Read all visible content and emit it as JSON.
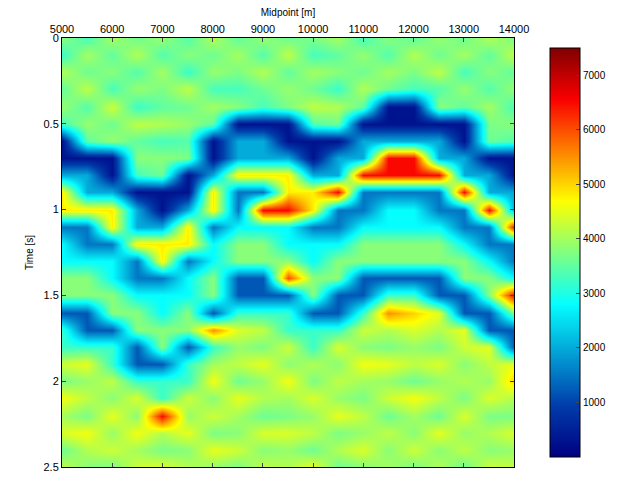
{
  "chart_data": {
    "type": "heatmap",
    "x_label": "Midpoint [m]",
    "y_label": "Time [s]",
    "x": [
      5000,
      5500,
      6000,
      6500,
      7000,
      7500,
      8000,
      8500,
      9000,
      9500,
      10000,
      10500,
      11000,
      11500,
      12000,
      12500,
      13000,
      13500,
      14000
    ],
    "y": [
      0,
      0.1,
      0.2,
      0.3,
      0.4,
      0.5,
      0.6,
      0.7,
      0.8,
      0.9,
      1.0,
      1.1,
      1.2,
      1.3,
      1.4,
      1.5,
      1.6,
      1.7,
      1.8,
      1.9,
      2.0,
      2.1,
      2.2,
      2.3,
      2.4,
      2.5
    ],
    "z": [
      [
        3800,
        3200,
        4100,
        3500,
        3900,
        3300,
        300,
        300,
        2000,
        4800,
        4800,
        1500,
        2800,
        2800,
        3800,
        3800,
        1200,
        3200,
        3200,
        4300,
        3700,
        4600,
        4000,
        4400,
        3600,
        4200
      ],
      [
        3300,
        4000,
        3600,
        4200,
        3400,
        3900,
        3500,
        300,
        2000,
        2000,
        4800,
        1500,
        1500,
        2800,
        3800,
        3800,
        1200,
        1200,
        3200,
        4500,
        3900,
        4200,
        3700,
        4600,
        4100,
        3800
      ],
      [
        4000,
        3500,
        3800,
        3300,
        4300,
        3600,
        3900,
        300,
        300,
        2000,
        4800,
        4800,
        1500,
        2800,
        2800,
        3800,
        3800,
        1200,
        3200,
        3200,
        4200,
        3800,
        4500,
        3900,
        4300,
        3700
      ],
      [
        3600,
        4100,
        3400,
        3900,
        3200,
        4200,
        3500,
        3800,
        3300,
        300,
        2000,
        2000,
        4800,
        1500,
        1500,
        2800,
        3800,
        3800,
        1200,
        1200,
        3200,
        4400,
        3800,
        4600,
        4000,
        4300
      ],
      [
        3900,
        3400,
        4000,
        3700,
        3500,
        4100,
        3300,
        3800,
        3600,
        300,
        300,
        2000,
        4800,
        4800,
        1500,
        2800,
        2800,
        3800,
        3800,
        1200,
        3200,
        3200,
        6500,
        4100,
        3700,
        4400
      ],
      [
        3400,
        3800,
        3200,
        4200,
        3600,
        3900,
        3400,
        3700,
        300,
        300,
        2000,
        4800,
        4800,
        1500,
        2800,
        2800,
        3800,
        3800,
        1200,
        3200,
        3200,
        4300,
        3900,
        4500,
        3800,
        4100
      ],
      [
        4100,
        3600,
        3900,
        3300,
        4000,
        3500,
        300,
        300,
        2000,
        4800,
        4800,
        1500,
        2800,
        2800,
        3800,
        3800,
        1200,
        5500,
        3200,
        4000,
        4600,
        3800,
        4300,
        3700,
        4500,
        3900
      ],
      [
        3500,
        4000,
        3700,
        3300,
        3800,
        300,
        2000,
        2000,
        4800,
        1500,
        1500,
        2800,
        3800,
        3800,
        1200,
        1200,
        3200,
        4400,
        3900,
        4200,
        3600,
        4500,
        4000,
        3800,
        4300,
        3700
      ],
      [
        3900,
        3400,
        4100,
        3600,
        3300,
        300,
        2000,
        2000,
        4800,
        1500,
        6500,
        2800,
        3800,
        3800,
        1200,
        1200,
        3200,
        4200,
        3700,
        4500,
        3900,
        4100,
        3600,
        4400,
        3800,
        4200
      ],
      [
        3600,
        4200,
        3500,
        3900,
        3700,
        300,
        300,
        2000,
        4800,
        4800,
        6500,
        2800,
        2800,
        3800,
        6000,
        1200,
        3200,
        3200,
        4300,
        3800,
        4600,
        4000,
        3700,
        4400,
        3900,
        4100
      ],
      [
        3700,
        3300,
        4000,
        3600,
        4200,
        3400,
        300,
        300,
        2000,
        4800,
        4800,
        1500,
        2800,
        2800,
        3800,
        3800,
        1200,
        3200,
        3200,
        4100,
        3700,
        4400,
        3900,
        4200,
        3600,
        4500
      ],
      [
        4000,
        3500,
        3800,
        3200,
        4100,
        3600,
        300,
        2000,
        2000,
        6500,
        1500,
        1500,
        2800,
        3800,
        3800,
        1200,
        1200,
        3200,
        4400,
        3800,
        4200,
        3900,
        4500,
        3700,
        4100,
        3600
      ],
      [
        3300,
        3900,
        3600,
        4100,
        3500,
        300,
        2000,
        2000,
        6500,
        1500,
        1500,
        2800,
        3800,
        3800,
        1200,
        1200,
        3200,
        4300,
        3800,
        4600,
        4000,
        3700,
        4200,
        3900,
        4400,
        3800
      ],
      [
        3800,
        3400,
        4000,
        3600,
        300,
        300,
        2000,
        6500,
        6500,
        1500,
        2800,
        2800,
        3800,
        3800,
        1200,
        3200,
        5500,
        4100,
        3700,
        4500,
        3900,
        4300,
        3600,
        4200,
        3800,
        4000
      ],
      [
        3500,
        4100,
        3700,
        3300,
        300,
        300,
        2000,
        6500,
        6500,
        1500,
        2800,
        2800,
        3800,
        3800,
        1200,
        3200,
        5000,
        4400,
        3900,
        4200,
        3600,
        4600,
        4000,
        3800,
        4300,
        3700
      ],
      [
        3900,
        3600,
        4200,
        3400,
        3800,
        300,
        2000,
        2000,
        6500,
        1500,
        1500,
        2800,
        3800,
        3800,
        1200,
        1200,
        4500,
        4100,
        3700,
        4400,
        3900,
        4200,
        3600,
        4500,
        3800,
        4100
      ],
      [
        3600,
        4000,
        3300,
        3900,
        3500,
        300,
        300,
        2000,
        2000,
        6500,
        1500,
        1500,
        2800,
        3800,
        3800,
        1200,
        1200,
        4500,
        4300,
        3800,
        4100,
        3700,
        4400,
        3900,
        4200,
        3600
      ],
      [
        4100,
        3500,
        3800,
        3400,
        4000,
        3700,
        3600,
        300,
        2000,
        2000,
        6500,
        1500,
        1500,
        2800,
        3800,
        3800,
        1200,
        1200,
        4500,
        4200,
        3900,
        4400,
        3700,
        4100,
        3800,
        4300
      ],
      [
        3700,
        4200,
        3500,
        3900,
        3300,
        3800,
        3400,
        300,
        300,
        2000,
        2000,
        6500,
        1500,
        1500,
        2800,
        6500,
        3800,
        1200,
        1200,
        4500,
        5000,
        4100,
        3700,
        4400,
        3900,
        4200
      ]
    ],
    "xlim": [
      5000,
      14000
    ],
    "ylim": [
      2.5,
      0
    ],
    "xticks": [
      5000,
      6000,
      7000,
      8000,
      9000,
      10000,
      11000,
      12000,
      13000,
      14000
    ],
    "yticks": [
      0,
      0.5,
      1,
      1.5,
      2,
      2.5
    ],
    "color": "Jet",
    "colorbar": {
      "range": [
        0,
        7500
      ],
      "ticks": [
        1000,
        2000,
        3000,
        4000,
        5000,
        6000,
        7000
      ]
    }
  }
}
